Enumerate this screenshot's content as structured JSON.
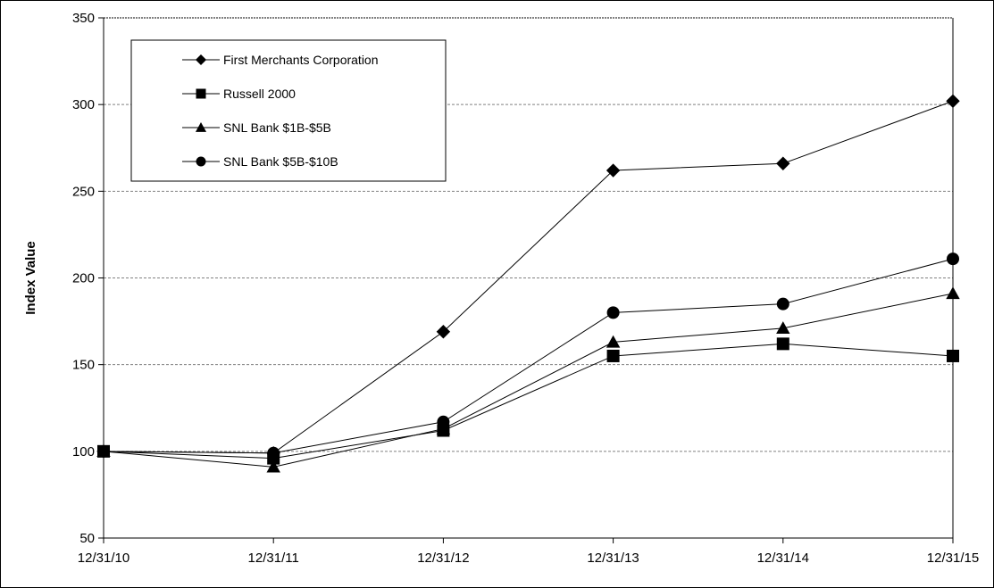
{
  "chart_data": {
    "type": "line",
    "title": "",
    "xlabel": "",
    "ylabel": "Index Value",
    "ylim": [
      50,
      350
    ],
    "yticks": [
      50,
      100,
      150,
      200,
      250,
      300,
      350
    ],
    "categories": [
      "12/31/10",
      "12/31/11",
      "12/31/12",
      "12/31/13",
      "12/31/14",
      "12/31/15"
    ],
    "grid": "horizontal dashed",
    "legend_position": "top-left",
    "series": [
      {
        "name": "First Merchants Corporation",
        "marker": "diamond",
        "values": [
          100,
          99,
          169,
          262,
          266,
          302
        ]
      },
      {
        "name": "Russell 2000",
        "marker": "square",
        "values": [
          100,
          96,
          112,
          155,
          162,
          155
        ]
      },
      {
        "name": "SNL Bank $1B-$5B",
        "marker": "triangle",
        "values": [
          100,
          91,
          113,
          163,
          171,
          191
        ]
      },
      {
        "name": "SNL Bank $5B-$10B",
        "marker": "circle",
        "values": [
          100,
          99,
          117,
          180,
          185,
          211
        ]
      }
    ]
  }
}
